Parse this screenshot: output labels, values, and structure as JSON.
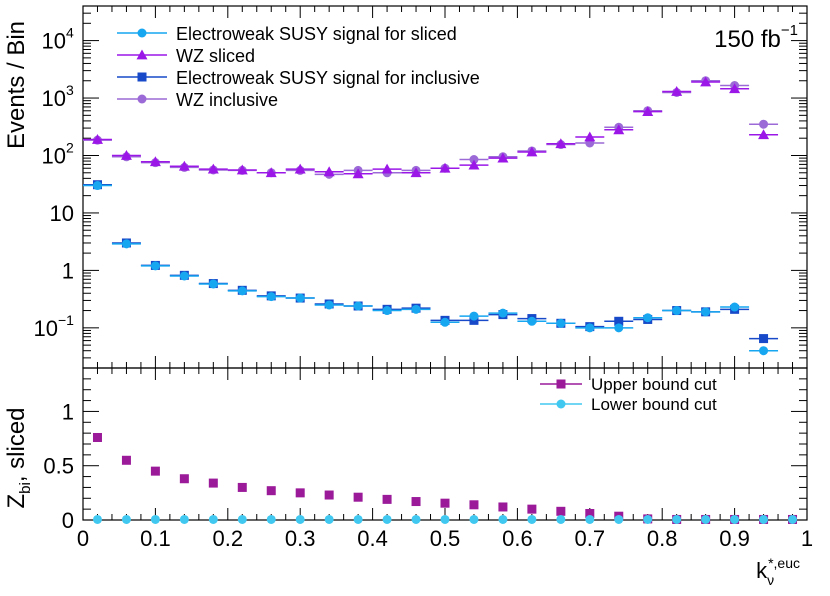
{
  "chart_data": [
    {
      "type": "scatter",
      "panel": "top",
      "yscale": "log",
      "ylabel": "Events / Bin",
      "xlim": [
        0,
        1
      ],
      "ylim": [
        0.02,
        40000
      ],
      "luminosity_label": {
        "base": "150 fb",
        "sup": "−1"
      },
      "y_tick_labels": [
        {
          "value": 0.1,
          "base": "10",
          "sup": "−1"
        },
        {
          "value": 1,
          "base": "1",
          "sup": ""
        },
        {
          "value": 10,
          "base": "10",
          "sup": ""
        },
        {
          "value": 100,
          "base": "10",
          "sup": "2"
        },
        {
          "value": 1000,
          "base": "10",
          "sup": "3"
        },
        {
          "value": 10000,
          "base": "10",
          "sup": "4"
        }
      ],
      "legend": [
        {
          "label": "Electroweak SUSY signal for sliced",
          "color": "#17a6f0",
          "marker": "circle"
        },
        {
          "label": "WZ sliced",
          "color": "#9b17e8",
          "marker": "triangle"
        },
        {
          "label": "Electroweak SUSY signal for inclusive",
          "color": "#1749c8",
          "marker": "square"
        },
        {
          "label": "WZ inclusive",
          "color": "#9c6ad6",
          "marker": "circle"
        }
      ],
      "x": [
        0.02,
        0.06,
        0.1,
        0.14,
        0.18,
        0.22,
        0.26,
        0.3,
        0.34,
        0.38,
        0.42,
        0.46,
        0.5,
        0.54,
        0.58,
        0.62,
        0.66,
        0.7,
        0.74,
        0.78,
        0.82,
        0.86,
        0.9,
        0.94
      ],
      "bin_half_width": 0.02,
      "series": [
        {
          "name": "Electroweak SUSY signal for sliced",
          "color": "#17a6f0",
          "marker": "circle",
          "values": [
            30,
            2.9,
            1.2,
            0.8,
            0.58,
            0.44,
            0.35,
            0.33,
            0.25,
            0.24,
            0.2,
            0.21,
            0.125,
            0.16,
            0.18,
            0.13,
            0.12,
            0.1,
            0.1,
            0.15,
            0.2,
            0.19,
            0.23,
            0.04
          ]
        },
        {
          "name": "WZ sliced",
          "color": "#9b17e8",
          "marker": "triangle",
          "values": [
            190,
            100,
            78,
            65,
            58,
            56,
            50,
            58,
            52,
            48,
            58,
            50,
            60,
            68,
            90,
            115,
            160,
            210,
            280,
            580,
            1300,
            1900,
            1450,
            230
          ]
        },
        {
          "name": "Electroweak SUSY signal for inclusive",
          "color": "#1749c8",
          "marker": "square",
          "values": [
            31,
            3.0,
            1.22,
            0.82,
            0.59,
            0.45,
            0.36,
            0.33,
            0.26,
            0.24,
            0.21,
            0.22,
            0.135,
            0.135,
            0.17,
            0.145,
            0.12,
            0.105,
            0.13,
            0.14,
            0.2,
            0.19,
            0.21,
            0.065
          ]
        },
        {
          "name": "WZ inclusive",
          "color": "#9c6ad6",
          "marker": "circle",
          "values": [
            185,
            95,
            75,
            62,
            56,
            55,
            50,
            55,
            47,
            55,
            50,
            55,
            60,
            85,
            95,
            120,
            155,
            165,
            310,
            600,
            1250,
            2000,
            1650,
            350
          ]
        }
      ]
    },
    {
      "type": "scatter",
      "panel": "bottom",
      "ylabel": {
        "base": "Z",
        "sub": "bi",
        "rest": ", sliced"
      },
      "xlabel": {
        "base": "k",
        "sub": "ν",
        "sup": "*,euc"
      },
      "xlim": [
        0,
        1
      ],
      "ylim": [
        0,
        1.4
      ],
      "x_tick_labels": [
        "0",
        "0.1",
        "0.2",
        "0.3",
        "0.4",
        "0.5",
        "0.6",
        "0.7",
        "0.8",
        "0.9",
        "1"
      ],
      "y_tick_labels": [
        "0",
        "0.5",
        "1"
      ],
      "legend": [
        {
          "label": "Upper bound cut",
          "color": "#9a1a9a",
          "marker": "square"
        },
        {
          "label": "Lower bound cut",
          "color": "#40c8f0",
          "marker": "circle"
        }
      ],
      "x": [
        0.02,
        0.06,
        0.1,
        0.14,
        0.18,
        0.22,
        0.26,
        0.3,
        0.34,
        0.38,
        0.42,
        0.46,
        0.5,
        0.54,
        0.58,
        0.62,
        0.66,
        0.7,
        0.74,
        0.78,
        0.82,
        0.86,
        0.9,
        0.94,
        0.98
      ],
      "series": [
        {
          "name": "Upper bound cut",
          "color": "#9a1a9a",
          "marker": "square",
          "values": [
            0.76,
            0.55,
            0.45,
            0.38,
            0.34,
            0.3,
            0.27,
            0.25,
            0.23,
            0.21,
            0.19,
            0.17,
            0.155,
            0.14,
            0.12,
            0.1,
            0.08,
            0.06,
            0.035,
            0.01,
            0.005,
            0.005,
            0.005,
            0.005,
            0.005
          ]
        },
        {
          "name": "Lower bound cut",
          "color": "#40c8f0",
          "marker": "circle",
          "values": [
            0.005,
            0.005,
            0.005,
            0.005,
            0.005,
            0.005,
            0.005,
            0.005,
            0.005,
            0.005,
            0.005,
            0.005,
            0.005,
            0.005,
            0.005,
            0.005,
            0.005,
            0.005,
            0.005,
            0.005,
            0.005,
            0.005,
            0.005,
            0.005,
            0.005
          ]
        }
      ]
    }
  ]
}
